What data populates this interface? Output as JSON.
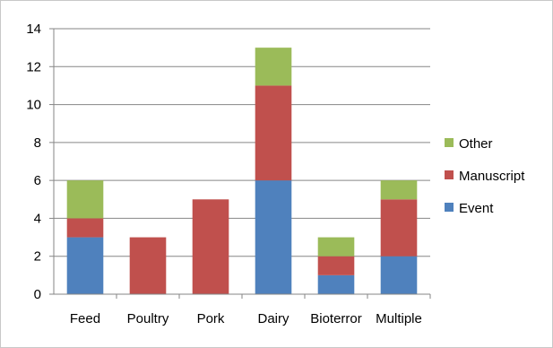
{
  "chart_data": {
    "type": "bar",
    "stacked": true,
    "categories": [
      "Feed",
      "Poultry",
      "Pork",
      "Dairy",
      "Bioterror",
      "Multiple"
    ],
    "series": [
      {
        "name": "Event",
        "color": "#4f81bd",
        "values": [
          3,
          0,
          0,
          6,
          1,
          2
        ]
      },
      {
        "name": "Manuscript",
        "color": "#c0504d",
        "values": [
          1,
          3,
          5,
          5,
          1,
          3
        ]
      },
      {
        "name": "Other",
        "color": "#9bbb59",
        "values": [
          2,
          0,
          0,
          2,
          1,
          1
        ]
      }
    ],
    "legend_order": [
      "Other",
      "Manuscript",
      "Event"
    ],
    "ylim": [
      0,
      14
    ],
    "yticks": [
      0,
      2,
      4,
      6,
      8,
      10,
      12,
      14
    ],
    "grid": true,
    "legend_position": "right",
    "title": "",
    "xlabel": "",
    "ylabel": ""
  }
}
